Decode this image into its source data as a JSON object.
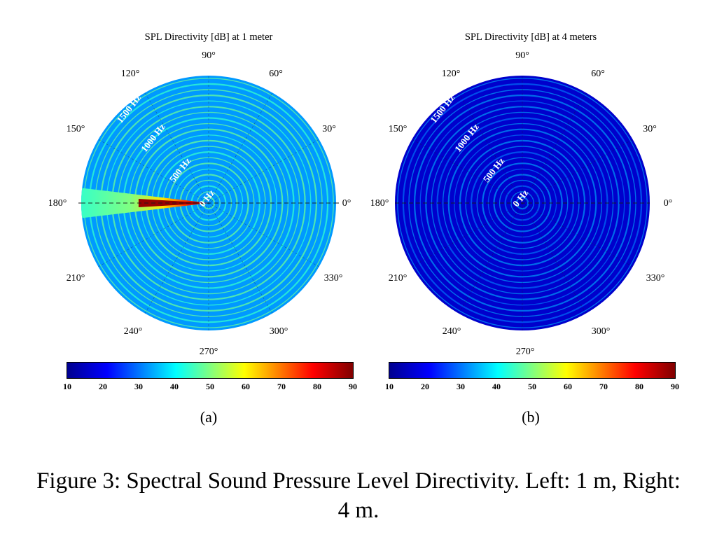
{
  "chart_data": [
    {
      "type": "heatmap",
      "subtype": "polar",
      "title": "SPL Directivity [dB] at 1 meter",
      "panel_label": "(a)",
      "angle_labels": [
        "90°",
        "60°",
        "30°",
        "0°",
        "330°",
        "300°",
        "270°",
        "240°",
        "210°",
        "180°",
        "150°",
        "120°"
      ],
      "radial_labels": [
        "0 Hz",
        "500 Hz",
        "1000 Hz",
        "1500 Hz"
      ],
      "colorbar_ticks": [
        "10",
        "20",
        "30",
        "40",
        "50",
        "60",
        "70",
        "80",
        "90"
      ],
      "colorbar_range": [
        10,
        90
      ],
      "colorscale": "jet",
      "background_level": 32,
      "ring_level": 48,
      "beam_direction_deg": 180,
      "beam_peak_level": 90
    },
    {
      "type": "heatmap",
      "subtype": "polar",
      "title": "SPL Directivity [dB] at 4 meters",
      "panel_label": "(b)",
      "angle_labels": [
        "90°",
        "60°",
        "30°",
        "0°",
        "330°",
        "300°",
        "270°",
        "240°",
        "210°",
        "180°",
        "150°",
        "120°"
      ],
      "radial_labels": [
        "0 Hz",
        "500 Hz",
        "1000 Hz",
        "1500 Hz"
      ],
      "colorbar_ticks": [
        "10",
        "20",
        "30",
        "40",
        "50",
        "60",
        "70",
        "80",
        "90"
      ],
      "colorbar_range": [
        10,
        90
      ],
      "colorscale": "jet",
      "background_level": 16,
      "ring_level": 34
    }
  ],
  "caption": "Figure 3: Spectral Sound Pressure Level Directivity. Left: 1 m, Right: 4 m."
}
